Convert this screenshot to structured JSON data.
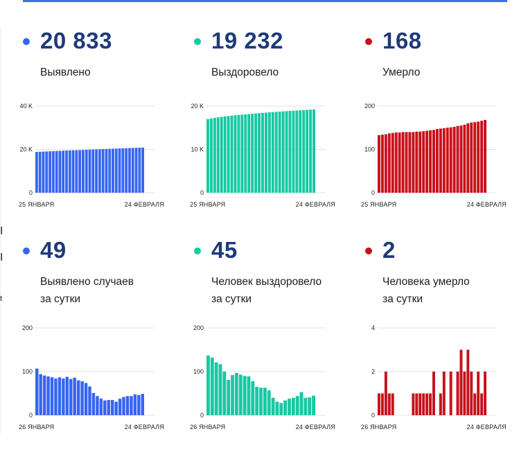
{
  "colors": {
    "blue": "#3565f2",
    "teal": "#17c9a3",
    "red": "#c8111b",
    "topbar": "#3c6ee8",
    "number": "#1f3a7a",
    "grid": "#e3e3e3"
  },
  "left_glyphs": [
    "I",
    "I",
    "t"
  ],
  "panels": [
    {
      "number": "20 833",
      "label_lines": [
        "Выявлено"
      ],
      "color": "blue"
    },
    {
      "number": "19 232",
      "label_lines": [
        "Выздоровело"
      ],
      "color": "teal"
    },
    {
      "number": "168",
      "label_lines": [
        "Умерло"
      ],
      "color": "red"
    },
    {
      "number": "49",
      "label_lines": [
        "Выявлено случаев",
        "за сутки"
      ],
      "color": "blue"
    },
    {
      "number": "45",
      "label_lines": [
        "Человек выздоровело",
        "за сутки"
      ],
      "color": "teal"
    },
    {
      "number": "2",
      "label_lines": [
        "Человека умерло",
        "за сутки"
      ],
      "color": "red"
    }
  ],
  "chart_data": [
    {
      "type": "bar",
      "x_start": "25 ЯНВАРЯ",
      "x_end": "24 ФЕВРАЛЯ",
      "yticks": [
        0,
        20000,
        40000
      ],
      "ytick_labels": [
        "0",
        "20 K",
        "40 K"
      ],
      "ylim": [
        0,
        40000
      ],
      "values": [
        18850,
        18920,
        18990,
        19060,
        19130,
        19200,
        19270,
        19340,
        19410,
        19480,
        19540,
        19600,
        19660,
        19720,
        19780,
        19840,
        19900,
        19960,
        20020,
        20080,
        20140,
        20200,
        20260,
        20320,
        20380,
        20440,
        20500,
        20560,
        20620,
        20680,
        20740,
        20800,
        20833
      ]
    },
    {
      "type": "bar",
      "x_start": "25 ЯНВАРЯ",
      "x_end": "24 ФЕВРАЛЯ",
      "yticks": [
        0,
        10000,
        20000
      ],
      "ytick_labels": [
        "0",
        "10 K",
        "20 K"
      ],
      "ylim": [
        0,
        20000
      ],
      "values": [
        17000,
        17150,
        17280,
        17400,
        17510,
        17610,
        17700,
        17790,
        17870,
        17950,
        18020,
        18090,
        18160,
        18230,
        18300,
        18370,
        18440,
        18500,
        18560,
        18620,
        18680,
        18730,
        18780,
        18830,
        18880,
        18930,
        18980,
        19030,
        19080,
        19130,
        19180,
        19232
      ]
    },
    {
      "type": "bar",
      "x_start": "25 ЯНВАРЯ",
      "x_end": "24 ФЕВРАЛЯ",
      "yticks": [
        0,
        100,
        200
      ],
      "ytick_labels": [
        "0",
        "100",
        "200"
      ],
      "ylim": [
        0,
        200
      ],
      "values": [
        133,
        134,
        135,
        137,
        138,
        139,
        139,
        140,
        140,
        140,
        140,
        141,
        141,
        142,
        143,
        144,
        145,
        147,
        148,
        149,
        150,
        151,
        152,
        154,
        155,
        157,
        160,
        162,
        163,
        164,
        166,
        168
      ]
    },
    {
      "type": "bar",
      "x_start": "26 ЯНВАРЯ",
      "x_end": "24 ФЕВРАЛЯ",
      "yticks": [
        0,
        100,
        200
      ],
      "ytick_labels": [
        "0",
        "100",
        "200"
      ],
      "ylim": [
        0,
        200
      ],
      "values": [
        107,
        94,
        91,
        89,
        87,
        84,
        87,
        84,
        88,
        83,
        86,
        80,
        78,
        74,
        66,
        51,
        44,
        38,
        34,
        35,
        35,
        31,
        38,
        42,
        44,
        44,
        48,
        46,
        49
      ]
    },
    {
      "type": "bar",
      "x_start": "26 ЯНВАРЯ",
      "x_end": "24 ФЕВРАЛЯ",
      "yticks": [
        0,
        100,
        200
      ],
      "ytick_labels": [
        "0",
        "100",
        "200"
      ],
      "ylim": [
        0,
        200
      ],
      "values": [
        137,
        132,
        121,
        117,
        100,
        81,
        92,
        97,
        93,
        90,
        89,
        78,
        65,
        63,
        63,
        57,
        40,
        31,
        28,
        34,
        38,
        40,
        44,
        53,
        40,
        41,
        45
      ]
    },
    {
      "type": "bar",
      "x_start": "26 ЯНВАРЯ",
      "x_end": "24 ФЕВРАЛЯ",
      "yticks": [
        0,
        2,
        4
      ],
      "ytick_labels": [
        "0",
        "2",
        "4"
      ],
      "ylim": [
        0,
        4
      ],
      "values": [
        1,
        1,
        2,
        1,
        1,
        0,
        0,
        0,
        0,
        0,
        1,
        1,
        1,
        1,
        1,
        1,
        2,
        0,
        1,
        2,
        0,
        2,
        0,
        2,
        3,
        2,
        3,
        2,
        1,
        2,
        1,
        2
      ]
    }
  ]
}
